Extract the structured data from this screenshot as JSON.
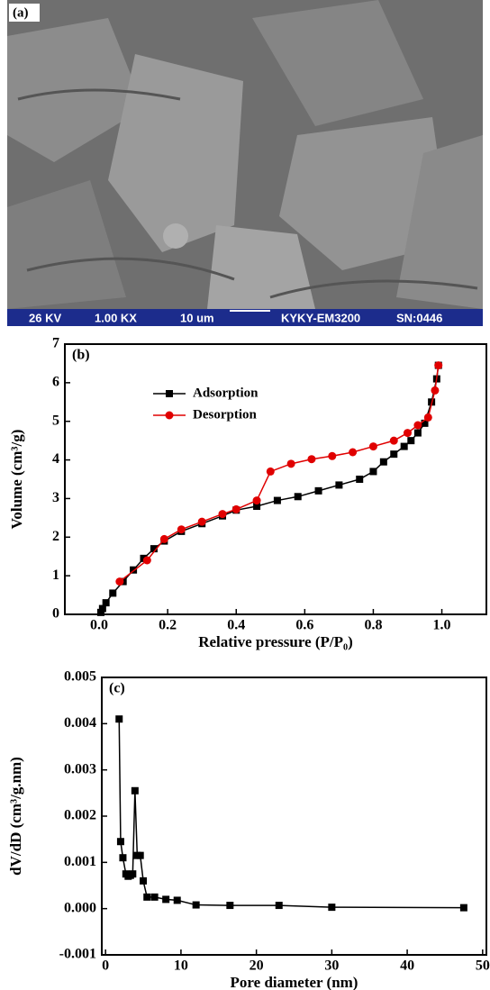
{
  "image": {
    "label": "(a)",
    "scale_bar": [
      "26 KV",
      "1.00 KX",
      "10 um",
      "KYKY-EM3200",
      "SN:0446"
    ]
  },
  "chart_data": [
    {
      "type": "line",
      "label": "(b)",
      "x_label": "Relative pressure (P/P₀)",
      "y_label": "Volume (cm³/g)",
      "xlim": [
        -0.1,
        1.13
      ],
      "ylim": [
        0,
        7
      ],
      "xticks": [
        {
          "value": 0,
          "label": "0.0"
        },
        0.2,
        0.4,
        0.6,
        0.8,
        {
          "value": 1,
          "label": "1.0"
        }
      ],
      "yticks": [
        0,
        1,
        2,
        3,
        4,
        5,
        6,
        7
      ],
      "legend": "upper-left",
      "series": [
        {
          "name": "Adsorption",
          "color": "#000000",
          "x": [
            0.005,
            0.01,
            0.02,
            0.04,
            0.07,
            0.1,
            0.13,
            0.16,
            0.19,
            0.24,
            0.3,
            0.36,
            0.4,
            0.46,
            0.52,
            0.58,
            0.64,
            0.7,
            0.76,
            0.8,
            0.83,
            0.86,
            0.89,
            0.91,
            0.93,
            0.95,
            0.97,
            0.985,
            0.99
          ],
          "values": [
            0.05,
            0.15,
            0.3,
            0.55,
            0.85,
            1.15,
            1.45,
            1.7,
            1.9,
            2.15,
            2.35,
            2.55,
            2.7,
            2.8,
            2.95,
            3.05,
            3.2,
            3.35,
            3.5,
            3.7,
            3.95,
            4.15,
            4.35,
            4.5,
            4.7,
            4.95,
            5.5,
            6.1,
            6.45
          ]
        },
        {
          "name": "Desorption",
          "color": "#e00000",
          "x": [
            0.06,
            0.14,
            0.19,
            0.24,
            0.3,
            0.36,
            0.4,
            0.46,
            0.5,
            0.56,
            0.62,
            0.68,
            0.74,
            0.8,
            0.86,
            0.9,
            0.93,
            0.96,
            0.98,
            0.99
          ],
          "values": [
            0.85,
            1.4,
            1.95,
            2.2,
            2.4,
            2.6,
            2.72,
            2.95,
            3.7,
            3.9,
            4.02,
            4.1,
            4.2,
            4.35,
            4.5,
            4.7,
            4.9,
            5.1,
            5.8,
            6.45
          ]
        }
      ]
    },
    {
      "type": "line",
      "label": "(c)",
      "x_label": "Pore diameter (nm)",
      "y_label": "dV/dD (cm³/g.nm)",
      "xlim": [
        -0.5,
        50.5
      ],
      "ylim": [
        -0.001,
        0.005
      ],
      "xticks": [
        0,
        10,
        20,
        30,
        40,
        50
      ],
      "yticks": [
        -0.001,
        {
          "value": 0,
          "label": "0.000"
        },
        0.001,
        0.002,
        0.003,
        0.004,
        0.005
      ],
      "series": [
        {
          "color": "#000000",
          "x": [
            1.8,
            2.0,
            2.3,
            2.7,
            3.0,
            3.3,
            3.6,
            3.9,
            4.2,
            4.6,
            5.0,
            5.5,
            6.5,
            8,
            9.5,
            12,
            16.5,
            23,
            30,
            47.5
          ],
          "values": [
            0.0041,
            0.00145,
            0.0011,
            0.00075,
            0.0007,
            0.00072,
            0.00075,
            0.00255,
            0.00115,
            0.00115,
            0.0006,
            0.00025,
            0.00025,
            0.0002,
            0.00018,
            8e-05,
            7e-05,
            7e-05,
            3e-05,
            2e-05
          ]
        }
      ]
    }
  ]
}
